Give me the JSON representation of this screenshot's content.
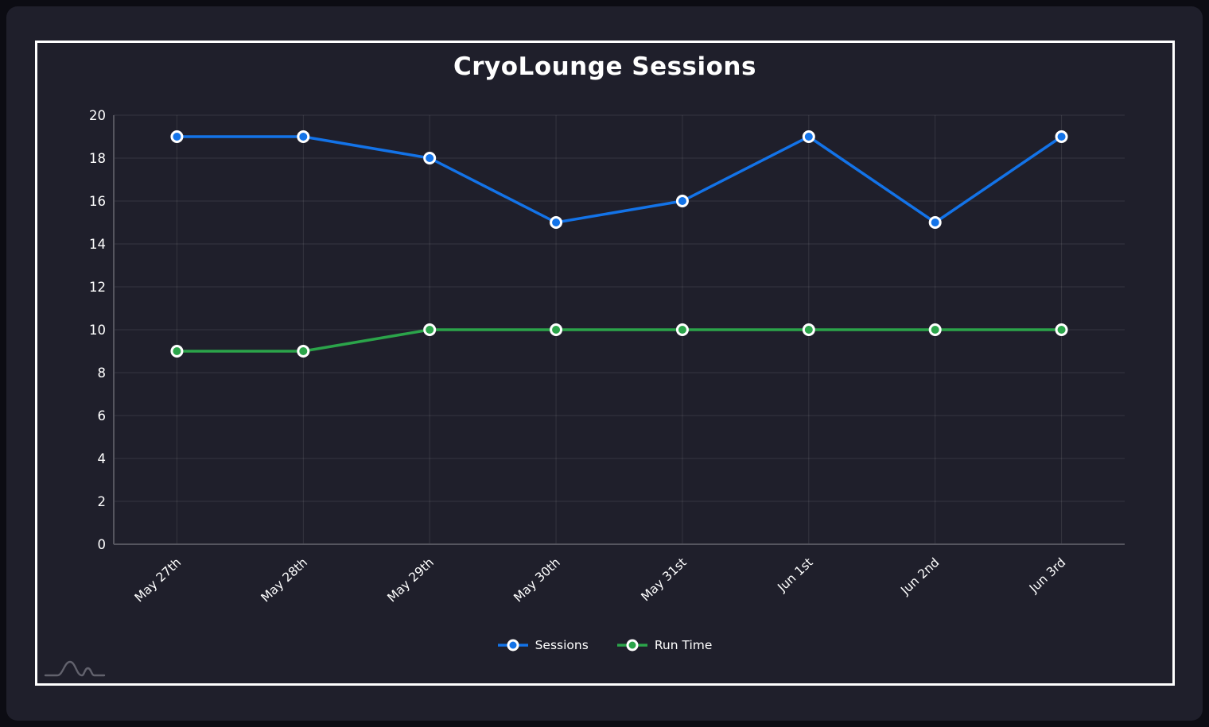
{
  "chart_data": {
    "type": "line",
    "title": "CryoLounge Sessions",
    "categories": [
      "May 27th",
      "May 28th",
      "May 29th",
      "May 30th",
      "May 31st",
      "Jun 1st",
      "Jun 2nd",
      "Jun 3rd"
    ],
    "series": [
      {
        "name": "Sessions",
        "color": "#1373e8",
        "values": [
          19,
          19,
          18,
          15,
          16,
          19,
          15,
          19
        ]
      },
      {
        "name": "Run Time",
        "color": "#2ba44a",
        "values": [
          9,
          9,
          10,
          10,
          10,
          10,
          10,
          10
        ]
      }
    ],
    "xlabel": "",
    "ylabel": "",
    "ylim": [
      0,
      20
    ],
    "ytick_step": 2,
    "grid": true,
    "legend_position": "bottom",
    "x_label_rotation_deg": -43,
    "point_style": "circle-with-white-ring"
  },
  "theme": {
    "page_bg": "#0c0c13",
    "card_bg": "#1f1f2b",
    "frame_border": "#ffffff",
    "grid_color": "rgba(255,255,255,0.10)",
    "axis_color": "#55555f",
    "text_color": "#ffffff",
    "watermark_color": "#6e6e79"
  },
  "icons": {
    "watermark": "line-curve-watermark-icon"
  }
}
